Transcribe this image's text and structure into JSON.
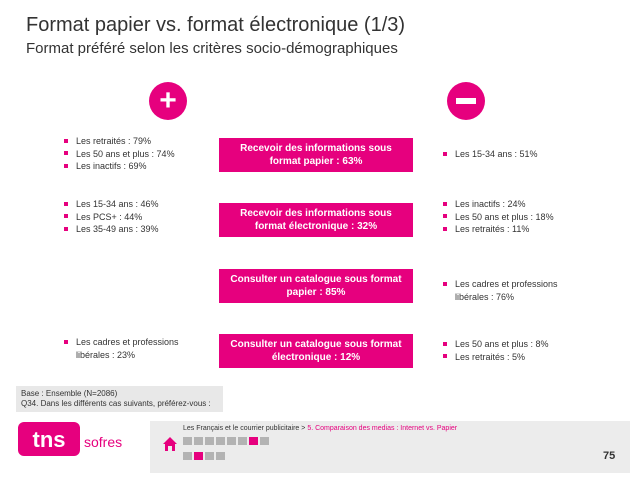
{
  "title": "Format papier vs. format électronique (1/3)",
  "subtitle": "Format préféré selon les critères socio-démographiques",
  "plus_sign": "+",
  "rows": [
    {
      "label": "Recevoir des informations sous\nformat papier : 63%",
      "left": [
        "Les retraités : 79%",
        "Les 50 ans et plus : 74%",
        "Les inactifs : 69%"
      ],
      "right": [
        "Les 15-34 ans : 51%"
      ]
    },
    {
      "label": "Recevoir des informations sous\nformat électronique : 32%",
      "left": [
        "Les 15-34 ans : 46%",
        "Les PCS+ : 44%",
        "Les 35-49 ans : 39%"
      ],
      "right": [
        "Les inactifs : 24%",
        "Les 50 ans et plus : 18%",
        "Les retraités : 11%"
      ]
    },
    {
      "label": "Consulter un catalogue sous format\npapier : 85%",
      "left": [],
      "right": [
        "Les cadres et professions\nlibérales : 76%"
      ]
    },
    {
      "label": "Consulter un catalogue sous format\nélectronique : 12%",
      "left": [
        "Les cadres et professions\nlibérales : 23%"
      ],
      "right": [
        "Les 50 ans et plus : 8%",
        "Les retraités : 5%"
      ]
    }
  ],
  "base": {
    "line1": "Base : Ensemble (N=2086)",
    "line2": "Q34. Dans les différents cas suivants, préférez-vous :"
  },
  "logo": {
    "brand": "tns",
    "suffix": "sofres",
    "color": "#e6007e"
  },
  "footer": {
    "breadcrumb_main": "Les Français et le courrier publicitaire > ",
    "breadcrumb_section": "5. Comparaison des medias : Internet vs. Papier",
    "nav_row1": [
      false,
      false,
      false,
      false,
      false,
      false,
      true,
      false
    ],
    "nav_row2": [
      false,
      true,
      false,
      false
    ],
    "page_number": "75"
  },
  "colors": {
    "accent": "#e6007e",
    "text": "#333333",
    "panel": "#ececec"
  }
}
